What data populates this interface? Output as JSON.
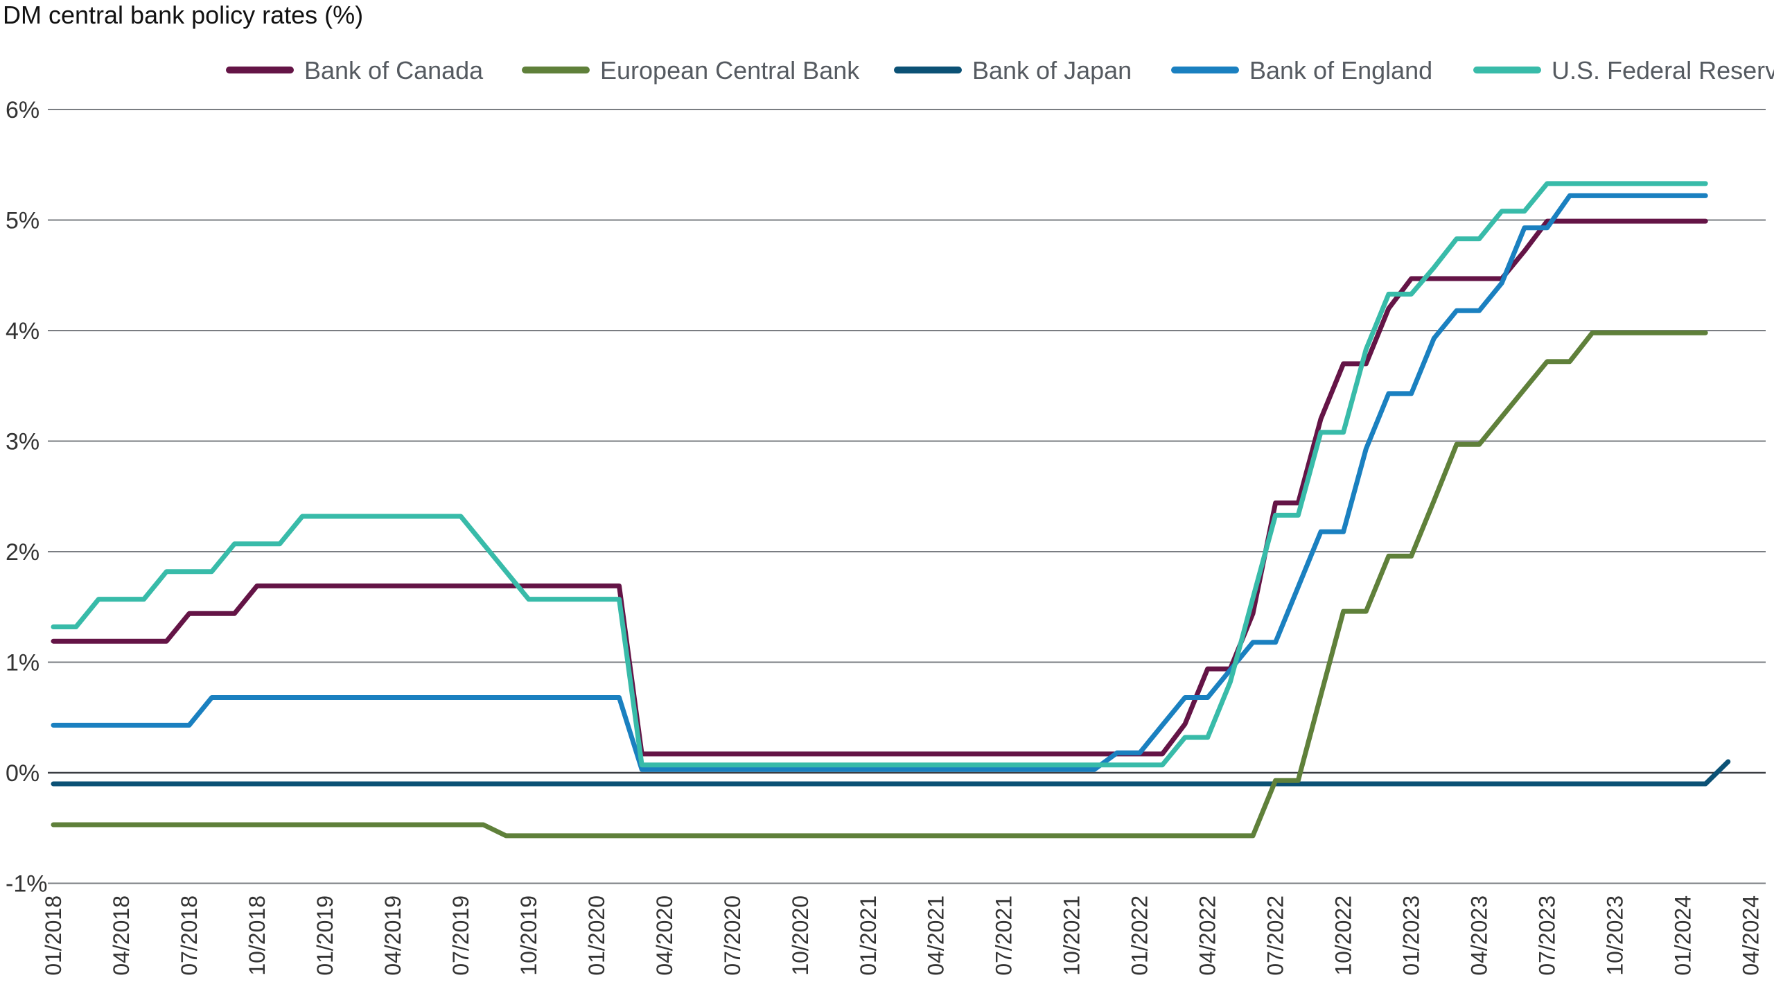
{
  "chart_data": {
    "type": "line",
    "title": "DM central bank policy rates (%)",
    "xlabel": "",
    "ylabel": "",
    "x_start": "01/2018",
    "x_frequency": "monthly",
    "x_tick_labels": [
      "01/2018",
      "04/2018",
      "07/2018",
      "10/2018",
      "01/2019",
      "04/2019",
      "07/2019",
      "10/2019",
      "01/2020",
      "04/2020",
      "07/2020",
      "10/2020",
      "01/2021",
      "04/2021",
      "07/2021",
      "10/2021",
      "01/2022",
      "04/2022",
      "07/2022",
      "10/2022",
      "01/2023",
      "04/2023",
      "07/2023",
      "10/2023",
      "01/2024",
      "04/2024"
    ],
    "y_tick_labels": [
      "-1%",
      "0%",
      "1%",
      "2%",
      "3%",
      "4%",
      "5%",
      "6%"
    ],
    "ylim": [
      -1,
      6
    ],
    "xlim": [
      "01/2018",
      "04/2024"
    ],
    "grid": "horizontal",
    "legend_position": "top",
    "series": [
      {
        "name": "Bank of Canada",
        "color": "#641446",
        "values": [
          1.19,
          1.19,
          1.19,
          1.19,
          1.19,
          1.19,
          1.44,
          1.44,
          1.44,
          1.69,
          1.69,
          1.69,
          1.69,
          1.69,
          1.69,
          1.69,
          1.69,
          1.69,
          1.69,
          1.69,
          1.69,
          1.69,
          1.69,
          1.69,
          1.69,
          1.69,
          0.17,
          0.17,
          0.17,
          0.17,
          0.17,
          0.17,
          0.17,
          0.17,
          0.17,
          0.17,
          0.17,
          0.17,
          0.17,
          0.17,
          0.17,
          0.17,
          0.17,
          0.17,
          0.17,
          0.17,
          0.17,
          0.17,
          0.17,
          0.17,
          0.44,
          0.94,
          0.94,
          1.44,
          2.44,
          2.44,
          3.2,
          3.7,
          3.7,
          4.2,
          4.47,
          4.47,
          4.47,
          4.47,
          4.47,
          4.72,
          4.99,
          4.99,
          4.99,
          4.99,
          4.99,
          4.99,
          4.99,
          4.99
        ]
      },
      {
        "name": "European Central Bank",
        "color": "#5f803a",
        "values": [
          -0.47,
          -0.47,
          -0.47,
          -0.47,
          -0.47,
          -0.47,
          -0.47,
          -0.47,
          -0.47,
          -0.47,
          -0.47,
          -0.47,
          -0.47,
          -0.47,
          -0.47,
          -0.47,
          -0.47,
          -0.47,
          -0.47,
          -0.47,
          -0.57,
          -0.57,
          -0.57,
          -0.57,
          -0.57,
          -0.57,
          -0.57,
          -0.57,
          -0.57,
          -0.57,
          -0.57,
          -0.57,
          -0.57,
          -0.57,
          -0.57,
          -0.57,
          -0.57,
          -0.57,
          -0.57,
          -0.57,
          -0.57,
          -0.57,
          -0.57,
          -0.57,
          -0.57,
          -0.57,
          -0.57,
          -0.57,
          -0.57,
          -0.57,
          -0.57,
          -0.57,
          -0.57,
          -0.57,
          -0.07,
          -0.07,
          0.7,
          1.46,
          1.46,
          1.96,
          1.96,
          2.46,
          2.97,
          2.97,
          3.22,
          3.47,
          3.72,
          3.72,
          3.98,
          3.98,
          3.98,
          3.98,
          3.98,
          3.98
        ]
      },
      {
        "name": "Bank of Japan",
        "color": "#0b5175",
        "values": [
          -0.1,
          -0.1,
          -0.1,
          -0.1,
          -0.1,
          -0.1,
          -0.1,
          -0.1,
          -0.1,
          -0.1,
          -0.1,
          -0.1,
          -0.1,
          -0.1,
          -0.1,
          -0.1,
          -0.1,
          -0.1,
          -0.1,
          -0.1,
          -0.1,
          -0.1,
          -0.1,
          -0.1,
          -0.1,
          -0.1,
          -0.1,
          -0.1,
          -0.1,
          -0.1,
          -0.1,
          -0.1,
          -0.1,
          -0.1,
          -0.1,
          -0.1,
          -0.1,
          -0.1,
          -0.1,
          -0.1,
          -0.1,
          -0.1,
          -0.1,
          -0.1,
          -0.1,
          -0.1,
          -0.1,
          -0.1,
          -0.1,
          -0.1,
          -0.1,
          -0.1,
          -0.1,
          -0.1,
          -0.1,
          -0.1,
          -0.1,
          -0.1,
          -0.1,
          -0.1,
          -0.1,
          -0.1,
          -0.1,
          -0.1,
          -0.1,
          -0.1,
          -0.1,
          -0.1,
          -0.1,
          -0.1,
          -0.1,
          -0.1,
          -0.1,
          -0.1,
          0.1
        ]
      },
      {
        "name": "Bank of England",
        "color": "#1a80c0",
        "values": [
          0.43,
          0.43,
          0.43,
          0.43,
          0.43,
          0.43,
          0.43,
          0.68,
          0.68,
          0.68,
          0.68,
          0.68,
          0.68,
          0.68,
          0.68,
          0.68,
          0.68,
          0.68,
          0.68,
          0.68,
          0.68,
          0.68,
          0.68,
          0.68,
          0.68,
          0.68,
          0.03,
          0.03,
          0.03,
          0.03,
          0.03,
          0.03,
          0.03,
          0.03,
          0.03,
          0.03,
          0.03,
          0.03,
          0.03,
          0.03,
          0.03,
          0.03,
          0.03,
          0.03,
          0.03,
          0.03,
          0.03,
          0.18,
          0.18,
          0.43,
          0.68,
          0.68,
          0.93,
          1.18,
          1.18,
          1.68,
          2.18,
          2.18,
          2.93,
          3.43,
          3.43,
          3.93,
          4.18,
          4.18,
          4.43,
          4.93,
          4.93,
          5.22,
          5.22,
          5.22,
          5.22,
          5.22,
          5.22,
          5.22
        ]
      },
      {
        "name": "U.S. Federal Reserve",
        "color": "#38bba9",
        "values": [
          1.32,
          1.32,
          1.57,
          1.57,
          1.57,
          1.82,
          1.82,
          1.82,
          2.07,
          2.07,
          2.07,
          2.32,
          2.32,
          2.32,
          2.32,
          2.32,
          2.32,
          2.32,
          2.32,
          2.07,
          1.82,
          1.57,
          1.57,
          1.57,
          1.57,
          1.57,
          0.07,
          0.07,
          0.07,
          0.07,
          0.07,
          0.07,
          0.07,
          0.07,
          0.07,
          0.07,
          0.07,
          0.07,
          0.07,
          0.07,
          0.07,
          0.07,
          0.07,
          0.07,
          0.07,
          0.07,
          0.07,
          0.07,
          0.07,
          0.07,
          0.32,
          0.32,
          0.82,
          1.58,
          2.33,
          2.33,
          3.08,
          3.08,
          3.83,
          4.33,
          4.33,
          4.57,
          4.83,
          4.83,
          5.08,
          5.08,
          5.33,
          5.33,
          5.33,
          5.33,
          5.33,
          5.33,
          5.33,
          5.33
        ]
      }
    ]
  }
}
